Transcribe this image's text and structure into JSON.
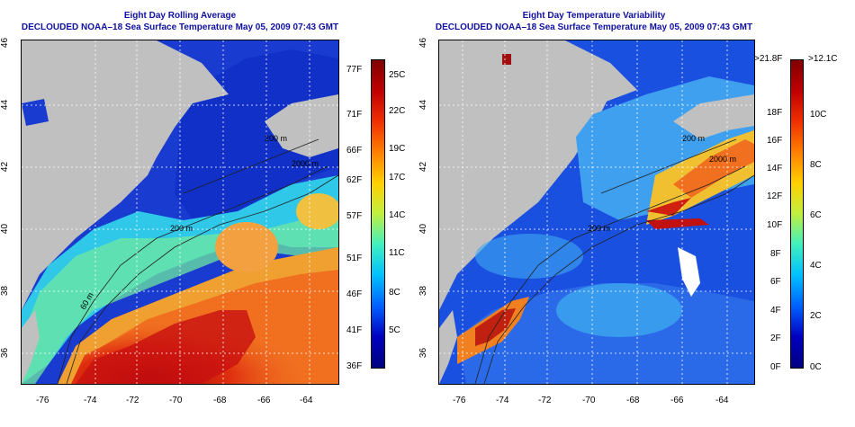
{
  "left": {
    "title": "Eight Day Rolling Average",
    "subtitle": "DECLOUDED NOAA–18 Sea Surface Temperature May 05, 2009 07:43 GMT",
    "x_ticks": [
      "-76",
      "-74",
      "-72",
      "-70",
      "-68",
      "-66",
      "-64"
    ],
    "y_ticks": [
      "46",
      "44",
      "42",
      "40",
      "38",
      "36"
    ],
    "colorbar_left": [
      "77F",
      "71F",
      "66F",
      "62F",
      "57F",
      "51F",
      "46F",
      "41F",
      "36F"
    ],
    "colorbar_right": [
      "25C",
      "22C",
      "19C",
      "17C",
      "14C",
      "11C",
      "8C",
      "5C"
    ],
    "contours": [
      "200 m",
      "2000 m",
      "200 m",
      "60 m"
    ]
  },
  "right": {
    "title": "Eight Day Temperature Variability",
    "subtitle": "DECLOUDED NOAA–18 Sea Surface Temperature May 05, 2009 07:43 GMT",
    "x_ticks": [
      "-76",
      "-74",
      "-72",
      "-70",
      "-68",
      "-66",
      "-64"
    ],
    "y_ticks": [
      "46",
      "44",
      "42",
      "40",
      "38",
      "36"
    ],
    "colorbar_left": [
      ">21.8F",
      "18F",
      "16F",
      "14F",
      "12F",
      "10F",
      "8F",
      "6F",
      "4F",
      "2F",
      "0F"
    ],
    "colorbar_right": [
      ">12.1C",
      "10C",
      "8C",
      "6C",
      "4C",
      "2C",
      "0C"
    ],
    "contours": [
      "200 m",
      "2000 m",
      "200 m"
    ]
  },
  "colors": {
    "title": "#1010a0",
    "land": "#c0c0c0"
  }
}
